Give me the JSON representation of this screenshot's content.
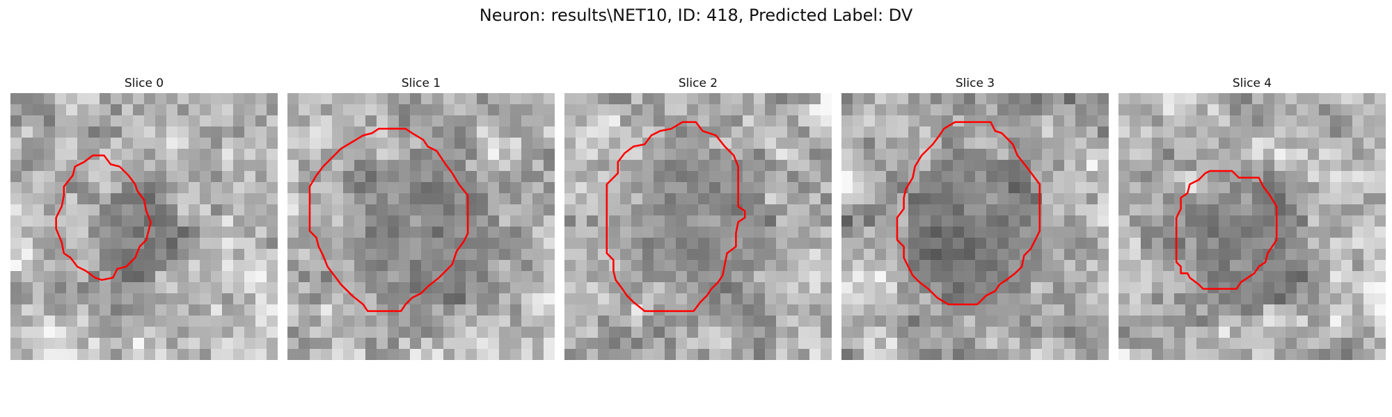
{
  "figure": {
    "title": "Neuron: results\\NET10, ID: 418, Predicted Label: DV",
    "contour_color": "#ff0000"
  },
  "panels": [
    {
      "title": "Slice 0",
      "seed": 11,
      "blob": [
        0.48,
        0.52,
        0.17,
        0.18
      ],
      "contour_fill": "dark",
      "contour": [
        [
          7.4,
          5.6
        ],
        [
          8.4,
          5.6
        ],
        [
          9,
          6.4
        ],
        [
          9.8,
          6.6
        ],
        [
          10.6,
          7.4
        ],
        [
          11.2,
          8.2
        ],
        [
          11.4,
          8.8
        ],
        [
          12,
          9.6
        ],
        [
          12.2,
          10.6
        ],
        [
          12.6,
          11.6
        ],
        [
          12.4,
          12.4
        ],
        [
          12.2,
          13.2
        ],
        [
          11.6,
          13.8
        ],
        [
          11.2,
          14.8
        ],
        [
          10.4,
          15.6
        ],
        [
          9.6,
          15.8
        ],
        [
          9.2,
          16.6
        ],
        [
          8.2,
          16.8
        ],
        [
          7.6,
          16.6
        ],
        [
          6.8,
          16
        ],
        [
          6,
          15.6
        ],
        [
          5.4,
          14.8
        ],
        [
          4.8,
          14.4
        ],
        [
          4.6,
          13.4
        ],
        [
          4.1,
          12.2
        ],
        [
          4.1,
          11.2
        ],
        [
          4.6,
          10.2
        ],
        [
          4.8,
          9.2
        ],
        [
          4.8,
          8.4
        ],
        [
          5.6,
          7.4
        ],
        [
          5.8,
          6.6
        ],
        [
          6.6,
          6.2
        ]
      ]
    },
    {
      "title": "Slice 1",
      "seed": 23,
      "blob": [
        0.5,
        0.52,
        0.28,
        0.3
      ],
      "contour_fill": "mid",
      "contour": [
        [
          6.8,
          3.8
        ],
        [
          7.6,
          3.6
        ],
        [
          8.2,
          3.2
        ],
        [
          10.6,
          3.2
        ],
        [
          11.2,
          3.6
        ],
        [
          12.2,
          4.2
        ],
        [
          12.6,
          4.8
        ],
        [
          13.4,
          5.2
        ],
        [
          14.2,
          6.4
        ],
        [
          14.8,
          7.2
        ],
        [
          15.4,
          8.2
        ],
        [
          16.2,
          9.2
        ],
        [
          16.2,
          10.4
        ],
        [
          16.2,
          11.6
        ],
        [
          16.2,
          12.6
        ],
        [
          15.8,
          13.4
        ],
        [
          15.2,
          14.2
        ],
        [
          14.8,
          15.4
        ],
        [
          13.6,
          16.6
        ],
        [
          12.6,
          17.4
        ],
        [
          12,
          18
        ],
        [
          11.2,
          18.4
        ],
        [
          10.6,
          19
        ],
        [
          10.2,
          19.6
        ],
        [
          7.2,
          19.6
        ],
        [
          6.8,
          19
        ],
        [
          5.8,
          18.2
        ],
        [
          4.8,
          17.2
        ],
        [
          4.2,
          16.4
        ],
        [
          3.6,
          15.6
        ],
        [
          3.2,
          14.6
        ],
        [
          2.8,
          13.8
        ],
        [
          2.6,
          13
        ],
        [
          2,
          12.4
        ],
        [
          2,
          11.2
        ],
        [
          2,
          10.2
        ],
        [
          2,
          9.4
        ],
        [
          2,
          8.4
        ],
        [
          2.6,
          7.4
        ],
        [
          3.2,
          6.6
        ],
        [
          4.2,
          5.6
        ],
        [
          4.8,
          5
        ],
        [
          5.8,
          4.4
        ]
      ]
    },
    {
      "title": "Slice 2",
      "seed": 37,
      "blob": [
        0.52,
        0.5,
        0.26,
        0.28
      ],
      "contour_fill": "mid",
      "contour": [
        [
          9.6,
          3.2
        ],
        [
          10.6,
          2.6
        ],
        [
          11.8,
          2.6
        ],
        [
          12.4,
          3.4
        ],
        [
          13.6,
          3.8
        ],
        [
          14.4,
          4.8
        ],
        [
          15.2,
          5.6
        ],
        [
          15.6,
          6.6
        ],
        [
          15.6,
          7.6
        ],
        [
          15.6,
          8.8
        ],
        [
          15.6,
          9.8
        ],
        [
          15.6,
          10.2
        ],
        [
          16.2,
          10.6
        ],
        [
          16.2,
          11.2
        ],
        [
          15.6,
          11.6
        ],
        [
          15.4,
          12.6
        ],
        [
          15.4,
          13.8
        ],
        [
          14.6,
          14.4
        ],
        [
          14.4,
          15.4
        ],
        [
          14.2,
          16.4
        ],
        [
          13.8,
          17
        ],
        [
          13.2,
          17.6
        ],
        [
          12.8,
          18.2
        ],
        [
          12.2,
          18.8
        ],
        [
          11.6,
          19.6
        ],
        [
          8.2,
          19.6
        ],
        [
          7.2,
          19.6
        ],
        [
          6.2,
          18.8
        ],
        [
          5.6,
          18.2
        ],
        [
          5.2,
          17.6
        ],
        [
          4.6,
          16.8
        ],
        [
          4.4,
          16
        ],
        [
          4.4,
          15
        ],
        [
          3.8,
          14.4
        ],
        [
          3.8,
          13.4
        ],
        [
          3.8,
          12.4
        ],
        [
          3.8,
          11.4
        ],
        [
          3.8,
          10.4
        ],
        [
          3.8,
          9.4
        ],
        [
          3.8,
          8.2
        ],
        [
          4.8,
          7.2
        ],
        [
          4.8,
          6.2
        ],
        [
          5.4,
          5.4
        ],
        [
          6.2,
          4.8
        ],
        [
          7.2,
          4.6
        ],
        [
          7.8,
          3.8
        ],
        [
          8.6,
          3.4
        ]
      ]
    },
    {
      "title": "Slice 3",
      "seed": 53,
      "blob": [
        0.5,
        0.52,
        0.27,
        0.3
      ],
      "contour_fill": "dark",
      "contour": [
        [
          9.2,
          3.2
        ],
        [
          10.2,
          2.6
        ],
        [
          11.2,
          2.6
        ],
        [
          12.2,
          2.6
        ],
        [
          13.4,
          2.6
        ],
        [
          13.8,
          3.4
        ],
        [
          14.4,
          3.6
        ],
        [
          15,
          4.2
        ],
        [
          15.4,
          4.6
        ],
        [
          15.8,
          5.6
        ],
        [
          16.6,
          6.6
        ],
        [
          17.2,
          7.4
        ],
        [
          17.8,
          8.2
        ],
        [
          17.8,
          9.4
        ],
        [
          17.8,
          10.4
        ],
        [
          17.8,
          11.4
        ],
        [
          17.8,
          12.4
        ],
        [
          17.4,
          13.2
        ],
        [
          17,
          14
        ],
        [
          16.4,
          14.6
        ],
        [
          16.2,
          15.6
        ],
        [
          15.6,
          16.2
        ],
        [
          14.8,
          16.8
        ],
        [
          14.2,
          17.2
        ],
        [
          13.8,
          17.8
        ],
        [
          13,
          18.2
        ],
        [
          12.2,
          19
        ],
        [
          11.2,
          19
        ],
        [
          10.2,
          19
        ],
        [
          9.6,
          19
        ],
        [
          8.6,
          18.4
        ],
        [
          7.8,
          17.6
        ],
        [
          7,
          17
        ],
        [
          6.4,
          16.4
        ],
        [
          6,
          15.6
        ],
        [
          5.6,
          14.8
        ],
        [
          5.6,
          13.8
        ],
        [
          5,
          13.2
        ],
        [
          5,
          12.2
        ],
        [
          5,
          11.2
        ],
        [
          5.6,
          10.4
        ],
        [
          5.6,
          9.4
        ],
        [
          5.8,
          8.6
        ],
        [
          6.4,
          7.6
        ],
        [
          6.6,
          6.6
        ],
        [
          7.2,
          5.6
        ],
        [
          8.2,
          4.6
        ],
        [
          8.8,
          3.8
        ]
      ]
    },
    {
      "title": "Slice 4",
      "seed": 71,
      "blob": [
        0.5,
        0.58,
        0.22,
        0.24
      ],
      "contour_fill": "dark",
      "contour": [
        [
          7.8,
          7.2
        ],
        [
          8.2,
          7
        ],
        [
          10.2,
          7
        ],
        [
          10.8,
          7.6
        ],
        [
          12.6,
          7.6
        ],
        [
          13,
          8.4
        ],
        [
          13.6,
          9.2
        ],
        [
          14.2,
          10.2
        ],
        [
          14.2,
          11.2
        ],
        [
          14.2,
          12.2
        ],
        [
          14.2,
          13.2
        ],
        [
          13.8,
          13.8
        ],
        [
          13.4,
          14.4
        ],
        [
          13.2,
          15.2
        ],
        [
          12.6,
          15.6
        ],
        [
          12.2,
          16.2
        ],
        [
          11.6,
          16.6
        ],
        [
          11,
          17
        ],
        [
          10.6,
          17.6
        ],
        [
          9.6,
          17.6
        ],
        [
          8.6,
          17.6
        ],
        [
          7.6,
          17.6
        ],
        [
          7.2,
          17.2
        ],
        [
          6.4,
          16.6
        ],
        [
          6.2,
          16.2
        ],
        [
          5.6,
          16.2
        ],
        [
          5.6,
          15.6
        ],
        [
          5.2,
          15.2
        ],
        [
          5.2,
          14.2
        ],
        [
          5.2,
          13.2
        ],
        [
          5.2,
          12.2
        ],
        [
          5.2,
          11.2
        ],
        [
          5.6,
          10.4
        ],
        [
          5.6,
          9.4
        ],
        [
          6.2,
          9
        ],
        [
          6.4,
          8.2
        ],
        [
          7.2,
          7.8
        ]
      ]
    }
  ]
}
